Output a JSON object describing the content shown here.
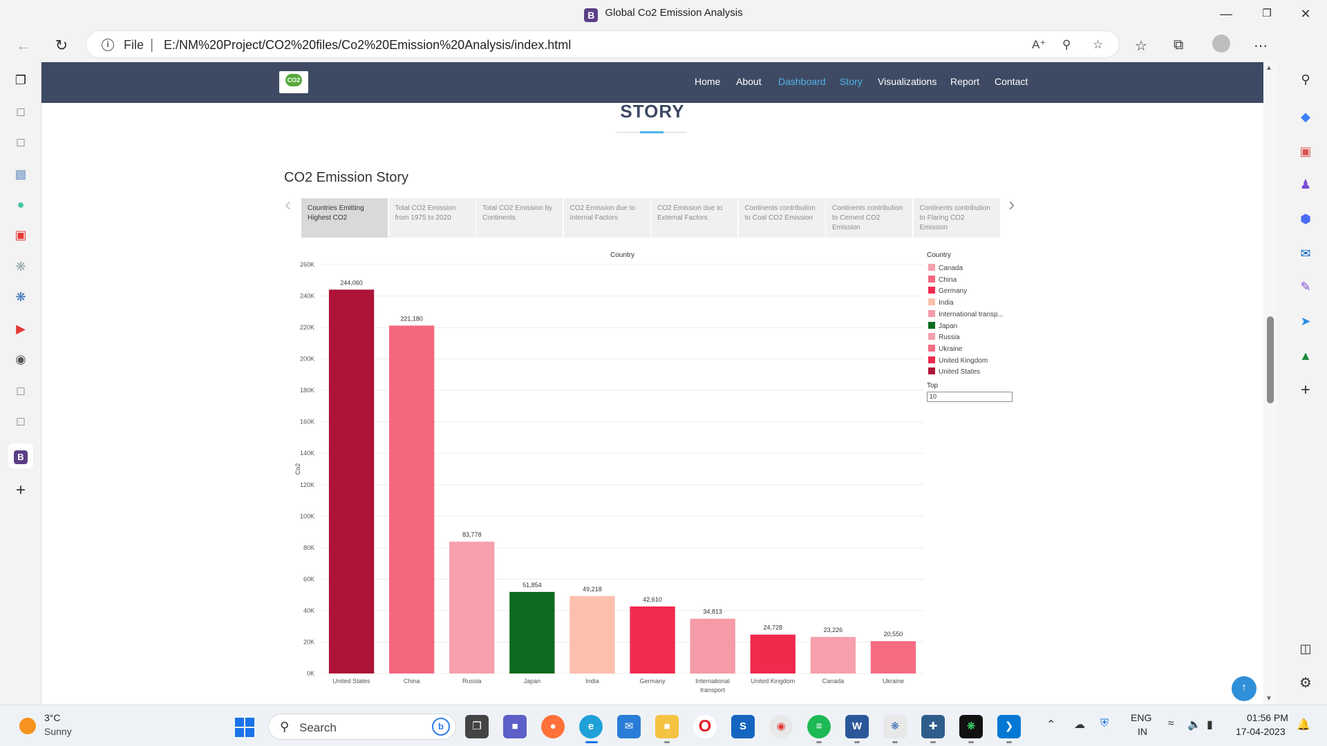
{
  "window": {
    "title": "Global Co2 Emission Analysis",
    "favicon_letter": "B"
  },
  "browser": {
    "address_prefix": "File",
    "url": "E:/NM%20Project/CO2%20files/Co2%20Emission%20Analysis/index.html"
  },
  "site": {
    "logo_text": "CO2",
    "nav": [
      {
        "label": "Home",
        "active": false
      },
      {
        "label": "About",
        "active": false
      },
      {
        "label": "Dashboard",
        "active": true
      },
      {
        "label": "Story",
        "active": true
      },
      {
        "label": "Visualizations",
        "active": false
      },
      {
        "label": "Report",
        "active": false
      },
      {
        "label": "Contact",
        "active": false
      }
    ],
    "section_heading": "STORY",
    "story_title": "CO2 Emission Story",
    "tabs": [
      {
        "label": "Countries Emitting Highest CO2",
        "active": true
      },
      {
        "label": "Total CO2 Emission from 1975 to 2020",
        "active": false
      },
      {
        "label": "Total CO2 Emission by Continents",
        "active": false
      },
      {
        "label": "CO2 Emission due to Internal Factors",
        "active": false
      },
      {
        "label": "CO2 Emission due to External Factors",
        "active": false
      },
      {
        "label": "Continents contribution to Coal CO2 Emission",
        "active": false
      },
      {
        "label": "Continents contribution to Cement CO2 Emission",
        "active": false
      },
      {
        "label": "Continents contribution to Flaring CO2 Emission",
        "active": false
      }
    ]
  },
  "chart_data": {
    "type": "bar",
    "title": "Country",
    "xlabel": "",
    "ylabel": "Co2",
    "ylim": [
      0,
      260000
    ],
    "yticks": [
      "0K",
      "20K",
      "40K",
      "60K",
      "80K",
      "100K",
      "120K",
      "140K",
      "160K",
      "180K",
      "200K",
      "220K",
      "240K",
      "260K"
    ],
    "categories": [
      "United States",
      "China",
      "Russia",
      "Japan",
      "India",
      "Germany",
      "International transport",
      "United Kingdom",
      "Canada",
      "Ukraine"
    ],
    "category_lines": [
      [
        "United States"
      ],
      [
        "China"
      ],
      [
        "Russia"
      ],
      [
        "Japan"
      ],
      [
        "India"
      ],
      [
        "Germany"
      ],
      [
        "International",
        "transport"
      ],
      [
        "United Kingdom"
      ],
      [
        "Canada"
      ],
      [
        "Ukraine"
      ]
    ],
    "values": [
      244060,
      221180,
      83778,
      51854,
      49218,
      42610,
      34813,
      24728,
      23226,
      20550
    ],
    "data_labels": [
      "244,060",
      "221,180",
      "83,778",
      "51,854",
      "49,218",
      "42,610",
      "34,813",
      "24,728",
      "23,226",
      "20,550"
    ],
    "colors": [
      "#ae1338",
      "#f5677f",
      "#f5a0ac",
      "#0d6a1f",
      "#fdbfad",
      "#f12a4f",
      "#f59aa7",
      "#f02a4d",
      "#f5a0ac",
      "#f56b82"
    ],
    "grid": true,
    "legend": {
      "title": "Country",
      "placement": "right",
      "items": [
        {
          "label": "Canada",
          "color": "#f5a0ac"
        },
        {
          "label": "China",
          "color": "#f5677f"
        },
        {
          "label": "Germany",
          "color": "#f12a4f"
        },
        {
          "label": "India",
          "color": "#fdbfad"
        },
        {
          "label": "International transp...",
          "color": "#f59aa7"
        },
        {
          "label": "Japan",
          "color": "#0d6a1f"
        },
        {
          "label": "Russia",
          "color": "#f5a0ac"
        },
        {
          "label": "Ukraine",
          "color": "#f56b82"
        },
        {
          "label": "United Kingdom",
          "color": "#f02a4d"
        },
        {
          "label": "United States",
          "color": "#ae1338"
        }
      ]
    },
    "filter": {
      "label": "Top",
      "value": "10"
    }
  },
  "taskbar": {
    "weather_temp": "3°C",
    "weather_condition": "Sunny",
    "search_placeholder": "Search",
    "lang_line1": "ENG",
    "lang_line2": "IN",
    "time": "01:56 PM",
    "date": "17-04-2023"
  }
}
